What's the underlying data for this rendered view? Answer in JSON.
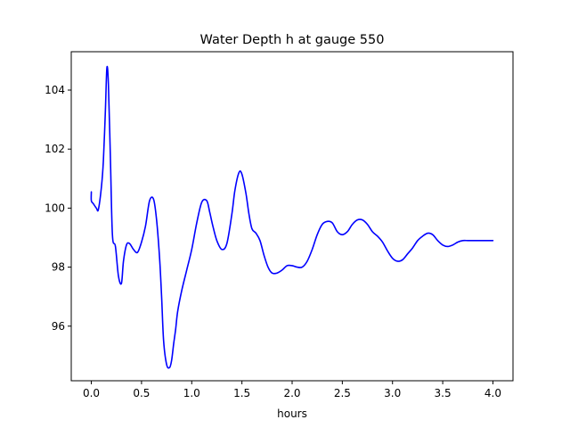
{
  "chart_data": {
    "type": "line",
    "title": "Water Depth h at gauge 550",
    "xlabel": "hours",
    "ylabel": "",
    "xlim": [
      -0.2,
      4.2
    ],
    "ylim": [
      94.15,
      105.3
    ],
    "x_ticks": [
      0.0,
      0.5,
      1.0,
      1.5,
      2.0,
      2.5,
      3.0,
      3.5,
      4.0
    ],
    "x_tick_labels": [
      "0.0",
      "0.5",
      "1.0",
      "1.5",
      "2.0",
      "2.5",
      "3.0",
      "3.5",
      "4.0"
    ],
    "y_ticks": [
      96,
      98,
      100,
      102,
      104
    ],
    "y_tick_labels": [
      "96",
      "98",
      "100",
      "102",
      "104"
    ],
    "grid": false,
    "series": [
      {
        "color": "#0000ff",
        "x": [
          0.0,
          0.0,
          0.02,
          0.05,
          0.07,
          0.1,
          0.12,
          0.14,
          0.155,
          0.17,
          0.19,
          0.21,
          0.24,
          0.27,
          0.3,
          0.32,
          0.35,
          0.38,
          0.42,
          0.46,
          0.5,
          0.54,
          0.58,
          0.62,
          0.65,
          0.68,
          0.7,
          0.72,
          0.75,
          0.78,
          0.8,
          0.82,
          0.84,
          0.86,
          0.9,
          0.95,
          1.0,
          1.05,
          1.1,
          1.15,
          1.18,
          1.21,
          1.25,
          1.3,
          1.35,
          1.4,
          1.43,
          1.47,
          1.5,
          1.54,
          1.57,
          1.6,
          1.64,
          1.68,
          1.72,
          1.76,
          1.8,
          1.85,
          1.9,
          1.95,
          2.0,
          2.05,
          2.1,
          2.15,
          2.2,
          2.25,
          2.3,
          2.35,
          2.4,
          2.45,
          2.5,
          2.55,
          2.6,
          2.65,
          2.7,
          2.75,
          2.8,
          2.85,
          2.9,
          2.95,
          3.0,
          3.05,
          3.1,
          3.15,
          3.2,
          3.25,
          3.3,
          3.35,
          3.4,
          3.45,
          3.5,
          3.55,
          3.6,
          3.65,
          3.7,
          3.75,
          3.8,
          3.85,
          3.9,
          3.95,
          4.0
        ],
        "y": [
          100.55,
          100.25,
          100.15,
          100.0,
          99.95,
          100.7,
          101.6,
          103.3,
          104.75,
          104.2,
          101.7,
          99.1,
          98.7,
          97.7,
          97.45,
          98.2,
          98.75,
          98.8,
          98.6,
          98.5,
          98.85,
          99.4,
          100.25,
          100.3,
          99.6,
          98.3,
          97.0,
          95.5,
          94.7,
          94.6,
          94.85,
          95.4,
          95.9,
          96.5,
          97.2,
          97.9,
          98.6,
          99.5,
          100.2,
          100.25,
          99.85,
          99.4,
          98.9,
          98.6,
          98.8,
          99.8,
          100.6,
          101.2,
          101.15,
          100.5,
          99.8,
          99.3,
          99.15,
          98.9,
          98.4,
          98.0,
          97.8,
          97.8,
          97.9,
          98.05,
          98.05,
          98.0,
          98.0,
          98.2,
          98.6,
          99.1,
          99.45,
          99.55,
          99.5,
          99.2,
          99.1,
          99.2,
          99.45,
          99.6,
          99.6,
          99.45,
          99.2,
          99.05,
          98.85,
          98.55,
          98.3,
          98.2,
          98.25,
          98.45,
          98.65,
          98.9,
          99.05,
          99.15,
          99.1,
          98.9,
          98.75,
          98.7,
          98.75,
          98.85,
          98.9,
          98.9,
          98.9,
          98.9,
          98.9,
          98.9,
          98.9
        ]
      }
    ]
  }
}
